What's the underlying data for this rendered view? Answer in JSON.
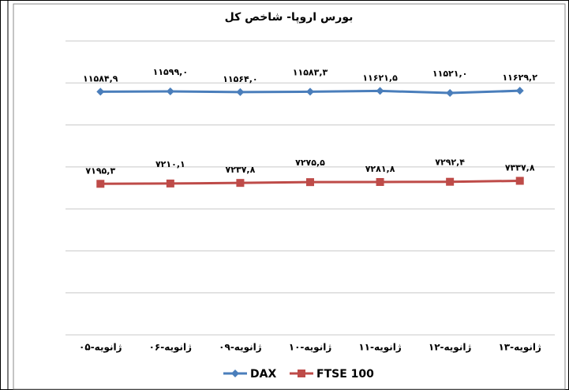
{
  "chart_data": {
    "type": "line",
    "title": "بورس اروپا- شاخص کل",
    "categories": [
      "ژانویه-۰۵",
      "ژانویه-۰۶",
      "ژانویه-۰۹",
      "ژانویه-۱۰",
      "ژانویه-۱۱",
      "ژانویه-۱۲",
      "ژانویه-۱۳"
    ],
    "series": [
      {
        "name": "DAX",
        "color": "#4a7ebb",
        "marker": "diamond",
        "values": [
          11584.9,
          11599.0,
          11564.0,
          11583.3,
          11621.5,
          11521.0,
          11629.2
        ],
        "value_labels": [
          "۱۱۵۸۴,۹",
          "۱۱۵۹۹,۰",
          "۱۱۵۶۴,۰",
          "۱۱۵۸۳,۳",
          "۱۱۶۲۱,۵",
          "۱۱۵۲۱,۰",
          "۱۱۶۲۹,۲"
        ]
      },
      {
        "name": "FTSE 100",
        "color": "#be4b48",
        "marker": "square",
        "values": [
          7195.3,
          7210.1,
          7237.8,
          7275.5,
          7281.8,
          7292.4,
          7337.8
        ],
        "value_labels": [
          "۷۱۹۵,۳",
          "۷۲۱۰,۱",
          "۷۲۳۷,۸",
          "۷۲۷۵,۵",
          "۷۲۸۱,۸",
          "۷۲۹۲,۴",
          "۷۳۳۷,۸"
        ]
      }
    ],
    "ylim": [
      0,
      14000
    ],
    "yticks": [
      0,
      2000,
      4000,
      6000,
      8000,
      10000,
      12000,
      14000
    ],
    "grid": true,
    "legend": "bottom"
  }
}
